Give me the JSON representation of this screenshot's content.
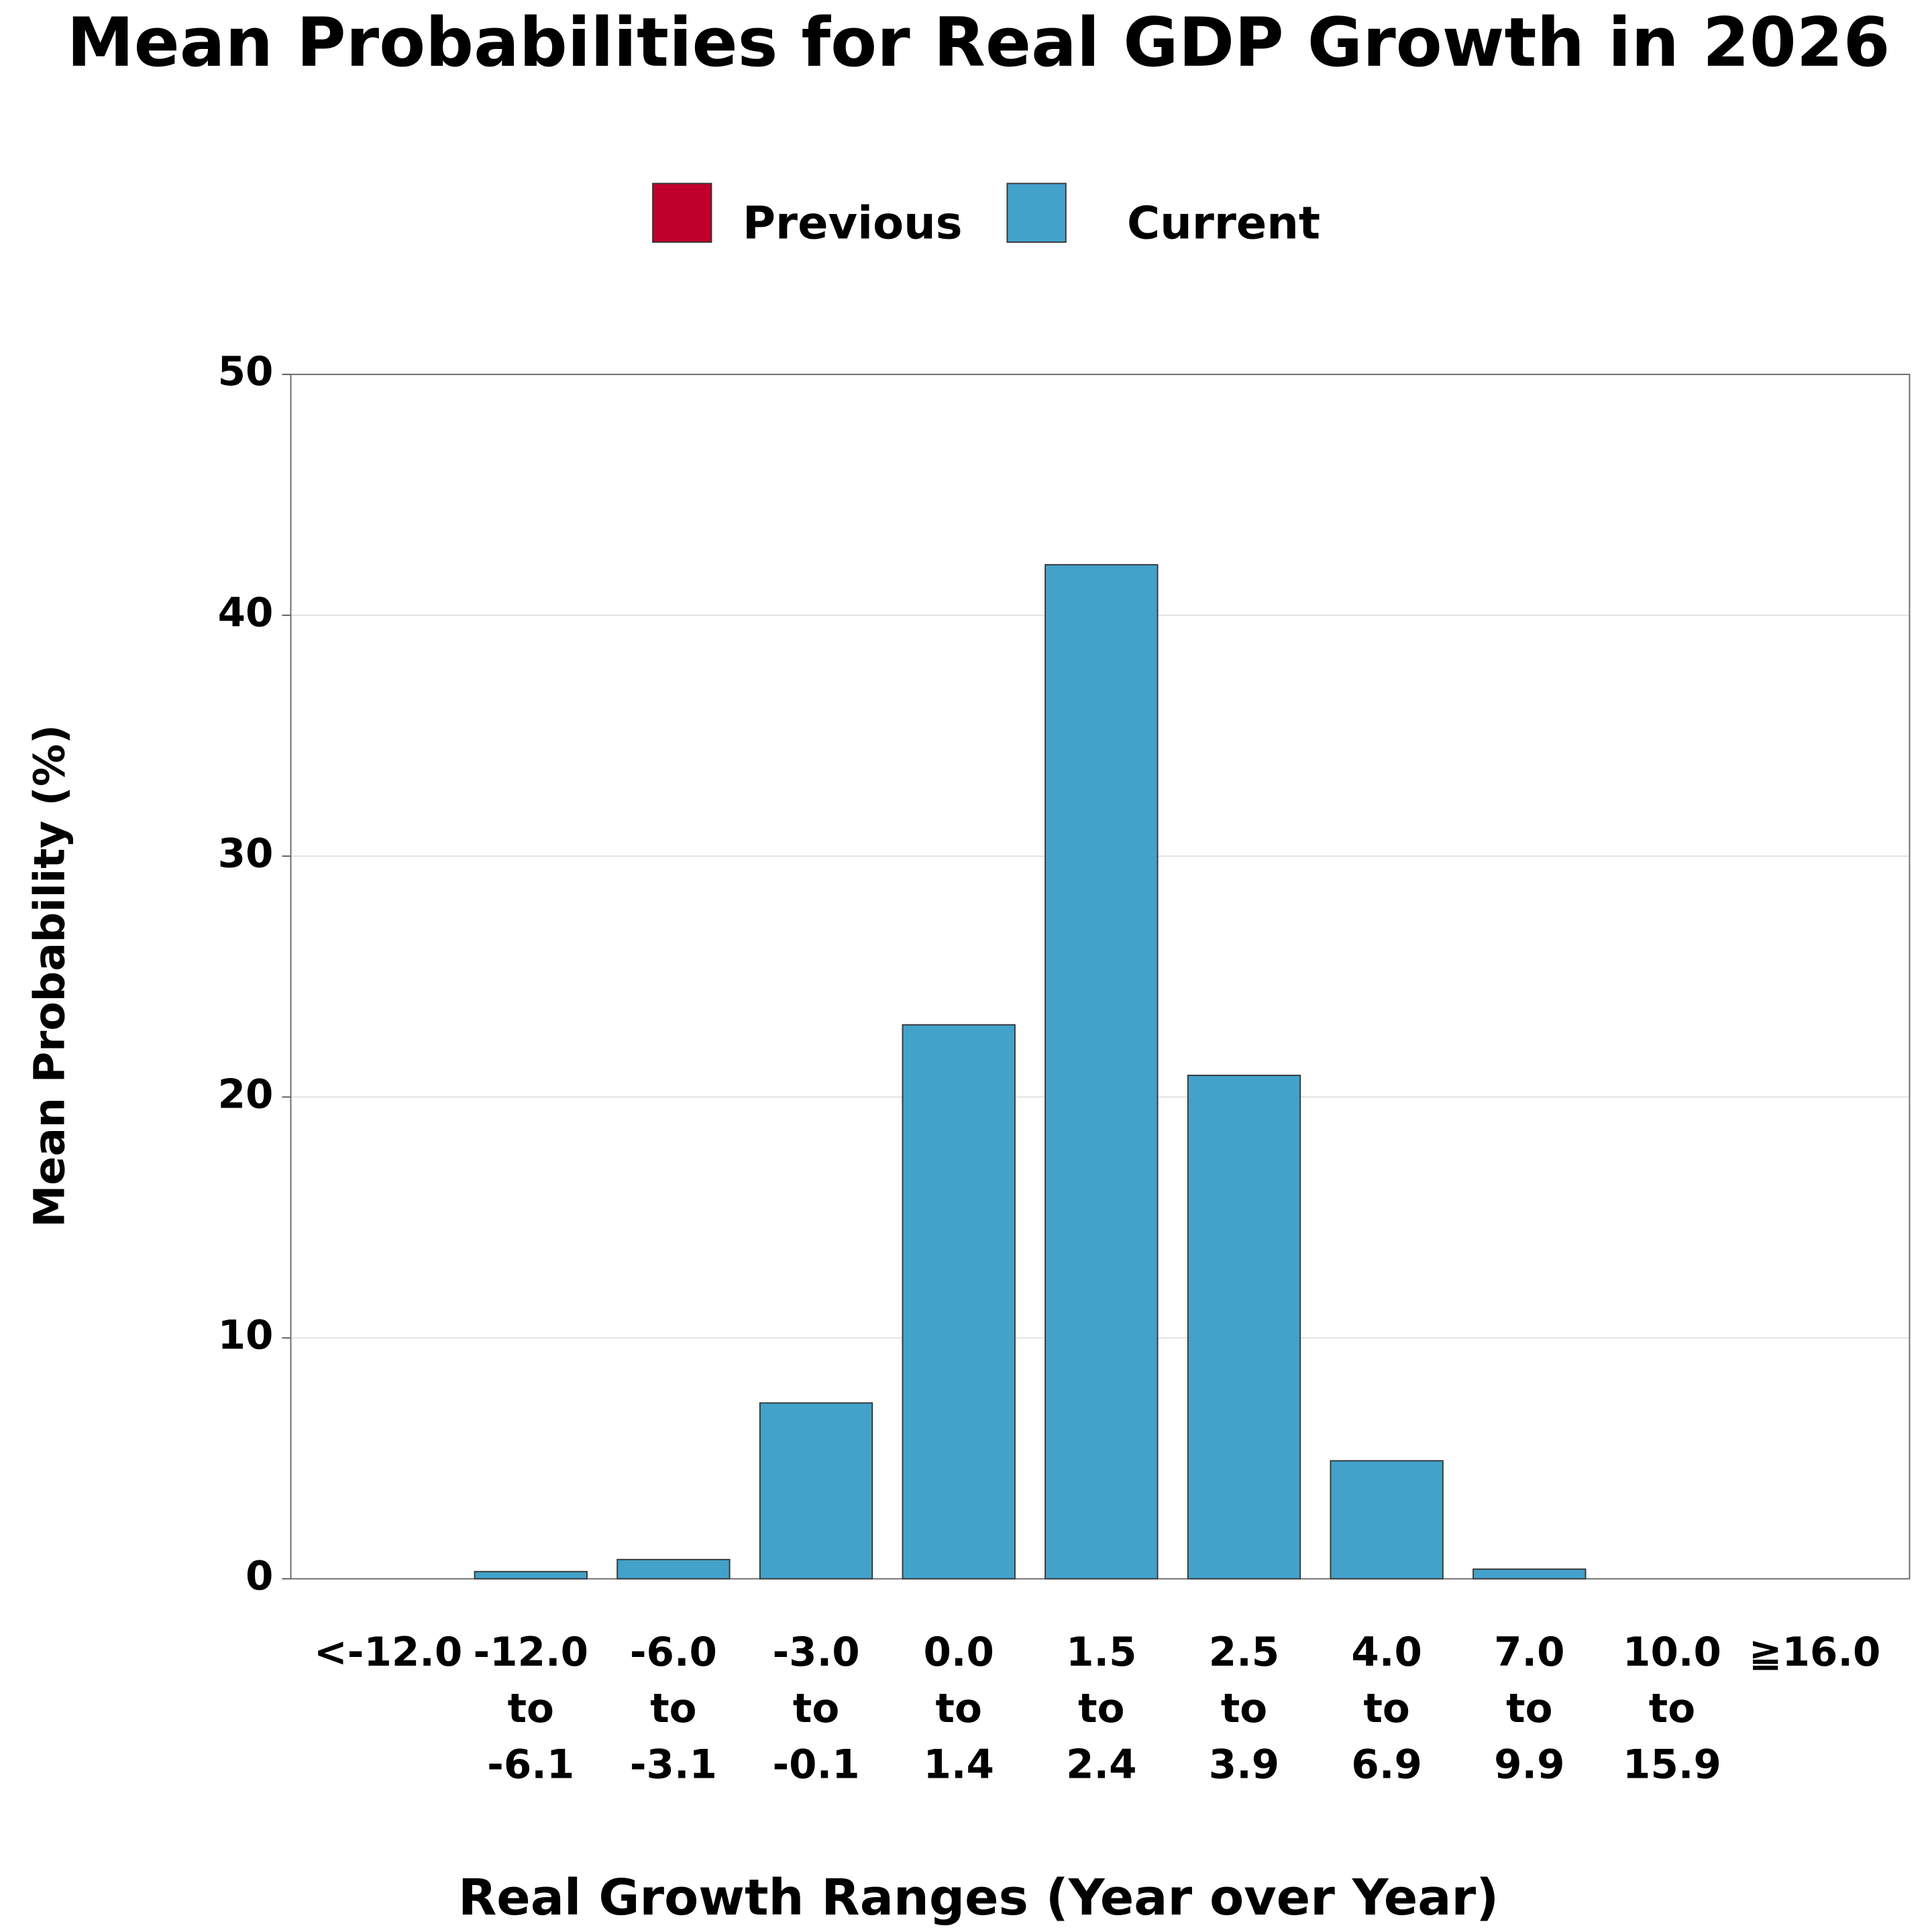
{
  "chart_data": {
    "type": "bar",
    "title": "Mean Probabilities for Real GDP Growth in 2026",
    "x_label": "Real Growth Ranges (Year over Year)",
    "y_label": "Mean Probability (%)",
    "categories": [
      [
        "<-12.0"
      ],
      [
        "-12.0",
        "to",
        "-6.1"
      ],
      [
        "-6.0",
        "to",
        "-3.1"
      ],
      [
        "-3.0",
        "to",
        "-0.1"
      ],
      [
        "0.0",
        "to",
        "1.4"
      ],
      [
        "1.5",
        "to",
        "2.4"
      ],
      [
        "2.5",
        "to",
        "3.9"
      ],
      [
        "4.0",
        "to",
        "6.9"
      ],
      [
        "7.0",
        "to",
        "9.9"
      ],
      [
        "10.0",
        "to",
        "15.9"
      ],
      [
        "≧16.0"
      ]
    ],
    "series": [
      {
        "name": "Previous",
        "color": "#c0002a",
        "values": [
          null,
          null,
          null,
          null,
          null,
          null,
          null,
          null,
          null,
          null,
          null
        ]
      },
      {
        "name": "Current",
        "color": "#43a2ca",
        "values": [
          0,
          0.3,
          0.8,
          7.3,
          23.0,
          42.1,
          20.9,
          4.9,
          0.4,
          0,
          0
        ]
      }
    ],
    "ylim": [
      0,
      50
    ],
    "yticks": [
      0,
      10,
      20,
      30,
      40,
      50
    ],
    "grid": true
  }
}
